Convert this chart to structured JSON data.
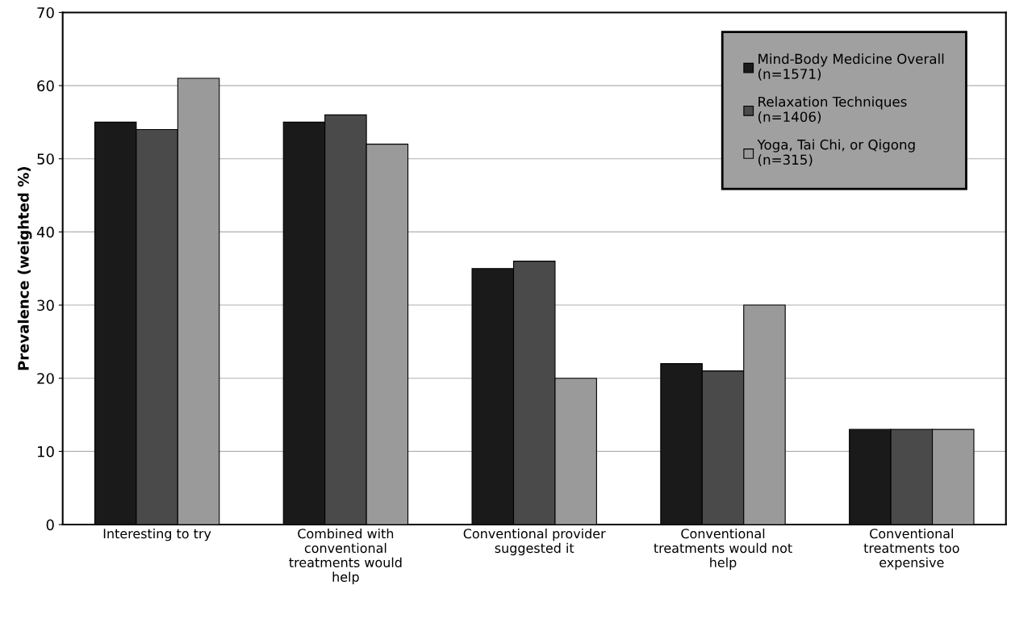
{
  "chart_data": {
    "type": "bar",
    "ylabel": "Prevalence (weighted %)",
    "categories": [
      "Interesting to try",
      "Combined with\nconventional\ntreatments would\nhelp",
      "Conventional provider\nsuggested it",
      "Conventional\ntreatments would not\nhelp",
      "Conventional\ntreatments too\nexpensive"
    ],
    "series": [
      {
        "name": "Mind-Body Medicine Overall\n(n=1571)",
        "color": "#1a1a1a",
        "values": [
          55,
          55,
          35,
          22,
          13
        ]
      },
      {
        "name": "Relaxation Techniques\n(n=1406)",
        "color": "#4a4a4a",
        "values": [
          54,
          56,
          36,
          21,
          13
        ]
      },
      {
        "name": "Yoga, Tai Chi, or Qigong\n(n=315)",
        "color": "#9a9a9a",
        "values": [
          61,
          52,
          20,
          30,
          13
        ]
      }
    ],
    "ylim": [
      0,
      70
    ],
    "yticks": [
      0,
      10,
      20,
      30,
      40,
      50,
      60,
      70
    ],
    "grid": "y",
    "legend": "top right"
  }
}
